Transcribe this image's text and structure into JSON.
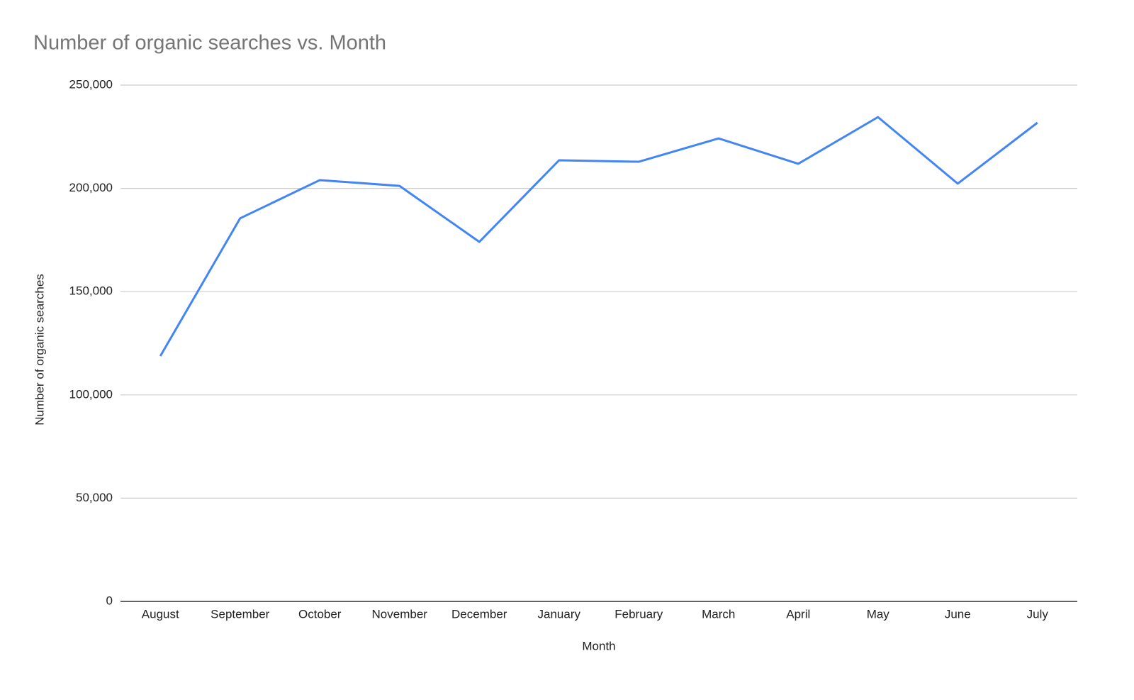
{
  "chart_data": {
    "type": "line",
    "title": "Number of organic searches vs. Month",
    "x_label": "Month",
    "y_label": "Number of organic searches",
    "categories": [
      "August",
      "September",
      "October",
      "November",
      "December",
      "January",
      "February",
      "March",
      "April",
      "May",
      "June",
      "July"
    ],
    "series": [
      {
        "name": "Number of organic searches",
        "color": "#4285f4",
        "values": [
          118800,
          185500,
          204000,
          201200,
          174100,
          213600,
          212900,
          224200,
          211900,
          234500,
          202300,
          231800
        ]
      }
    ],
    "ylim": [
      0,
      250000
    ],
    "yticks": [
      0,
      {
        "value": 50000,
        "label": "50,000"
      },
      {
        "value": 100000,
        "label": "100,000"
      },
      {
        "value": 150000,
        "label": "150,000"
      },
      {
        "value": 200000,
        "label": "200,000"
      },
      {
        "value": 250000,
        "label": "250,000"
      }
    ],
    "grid": true
  }
}
